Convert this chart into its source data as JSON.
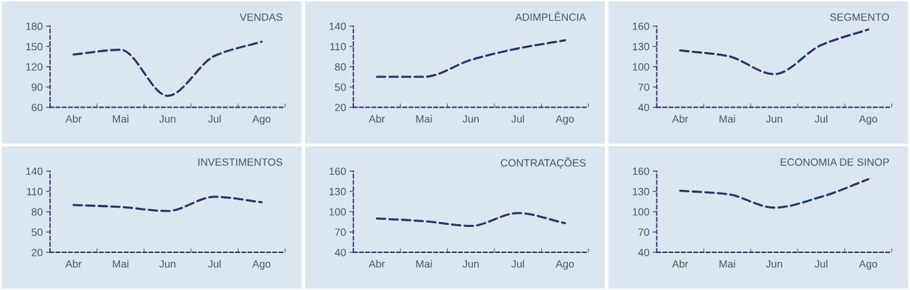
{
  "chart_data": [
    {
      "type": "line",
      "title": "VENDAS",
      "categories": [
        "Abr",
        "Mai",
        "Jun",
        "Jul",
        "Ago"
      ],
      "series": [
        {
          "color": "#1f3864",
          "values": [
            138,
            145,
            77,
            136,
            157
          ]
        }
      ],
      "ylim": [
        60,
        180
      ],
      "yticks": [
        60,
        90,
        120,
        150,
        180
      ],
      "line_style": "dashed",
      "grid": false,
      "legend": false
    },
    {
      "type": "line",
      "title": "ADIMPLÊNCIA",
      "categories": [
        "Abr",
        "Mai",
        "Jun",
        "Jul",
        "Ago"
      ],
      "series": [
        {
          "color": "#1f3864",
          "values": [
            65,
            65,
            90,
            107,
            119
          ]
        }
      ],
      "ylim": [
        20,
        140
      ],
      "yticks": [
        20,
        50,
        80,
        110,
        140
      ],
      "line_style": "dashed",
      "grid": false,
      "legend": false
    },
    {
      "type": "line",
      "title": "SEGMENTO",
      "categories": [
        "Abr",
        "Mai",
        "Jun",
        "Jul",
        "Ago"
      ],
      "series": [
        {
          "color": "#1f3864",
          "values": [
            124,
            116,
            89,
            132,
            155
          ]
        }
      ],
      "ylim": [
        40,
        160
      ],
      "yticks": [
        40,
        70,
        100,
        130,
        160
      ],
      "line_style": "dashed",
      "grid": false,
      "legend": false
    },
    {
      "type": "line",
      "title": "INVESTIMENTOS",
      "categories": [
        "Abr",
        "Mai",
        "Jun",
        "Jul",
        "Ago"
      ],
      "series": [
        {
          "color": "#1f3864",
          "values": [
            90,
            87,
            81,
            102,
            94
          ]
        }
      ],
      "ylim": [
        20,
        140
      ],
      "yticks": [
        20,
        50,
        80,
        110,
        140
      ],
      "line_style": "dashed",
      "grid": false,
      "legend": false
    },
    {
      "type": "line",
      "title": "CONTRATAÇÕES",
      "categories": [
        "Abr",
        "Mai",
        "Jun",
        "Jul",
        "Ago"
      ],
      "series": [
        {
          "color": "#1f3864",
          "values": [
            90,
            86,
            79,
            98,
            83
          ]
        }
      ],
      "ylim": [
        40,
        160
      ],
      "yticks": [
        40,
        70,
        100,
        130,
        160
      ],
      "line_style": "dashed",
      "grid": false,
      "legend": false
    },
    {
      "type": "line",
      "title": "ECONOMIA DE SINOP",
      "categories": [
        "Abr",
        "Mai",
        "Jun",
        "Jul",
        "Ago"
      ],
      "series": [
        {
          "color": "#1f3864",
          "values": [
            131,
            126,
            106,
            122,
            148
          ]
        }
      ],
      "ylim": [
        40,
        160
      ],
      "yticks": [
        40,
        70,
        100,
        130,
        160
      ],
      "line_style": "dashed",
      "grid": false,
      "legend": false
    }
  ]
}
